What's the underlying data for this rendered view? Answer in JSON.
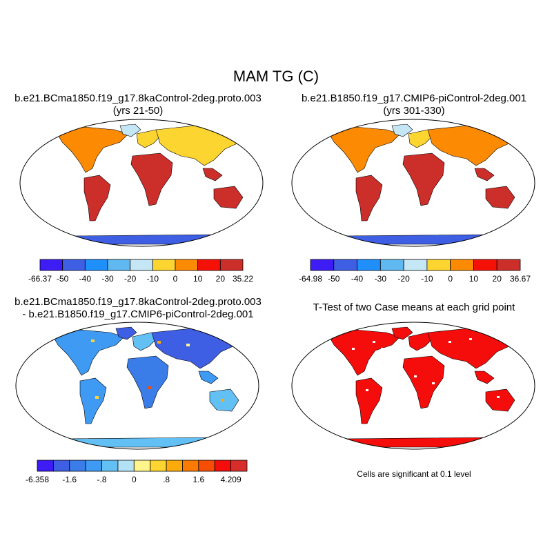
{
  "title": "MAM TG (C)",
  "panels": [
    {
      "id": "p1",
      "title_line1": "b.e21.BCma1850.f19_g17.8kaControl-2deg.proto.003",
      "title_line2": "(yrs 21-50)",
      "colorbar": {
        "labels": [
          "-66.37",
          "-50",
          "-40",
          "-30",
          "-20",
          "-10",
          "0",
          "10",
          "20",
          "35.22"
        ],
        "colors": [
          "#3d1cf6",
          "#3e5ee4",
          "#1f8ffb",
          "#5fb8f0",
          "#c4e6f5",
          "#fdd530",
          "#fc8a02",
          "#f61107",
          "#cc2e2a"
        ]
      }
    },
    {
      "id": "p2",
      "title_line1": "b.e21.B1850.f19_g17.CMIP6-piControl-2deg.001",
      "title_line2": "(yrs 301-330)",
      "colorbar": {
        "labels": [
          "-64.98",
          "-50",
          "-40",
          "-30",
          "-20",
          "-10",
          "0",
          "10",
          "20",
          "36.67"
        ],
        "colors": [
          "#3d1cf6",
          "#3e5ee4",
          "#1f8ffb",
          "#5fb8f0",
          "#c4e6f5",
          "#fdd530",
          "#fc8a02",
          "#f61107",
          "#cc2e2a"
        ]
      }
    },
    {
      "id": "p3",
      "title_line1": "b.e21.BCma1850.f19_g17.8kaControl-2deg.proto.003",
      "title_line2": "- b.e21.B1850.f19_g17.CMIP6-piControl-2deg.001",
      "colorbar": {
        "labels": [
          "-6.358",
          "-1.6",
          "-.8",
          "0",
          ".8",
          "1.6",
          "4.209"
        ],
        "colors": [
          "#3d1cf6",
          "#3e5ee4",
          "#3a7ce8",
          "#3f9af3",
          "#62c0f5",
          "#b3e2f6",
          "#fef68d",
          "#fdd530",
          "#fbac0c",
          "#fa7a02",
          "#f74d04",
          "#f40d0a",
          "#d62d2b"
        ]
      }
    },
    {
      "id": "p4",
      "title_line1": "T-Test of two Case means at each grid point",
      "note": "Cells are significant at 0.1 level"
    }
  ]
}
